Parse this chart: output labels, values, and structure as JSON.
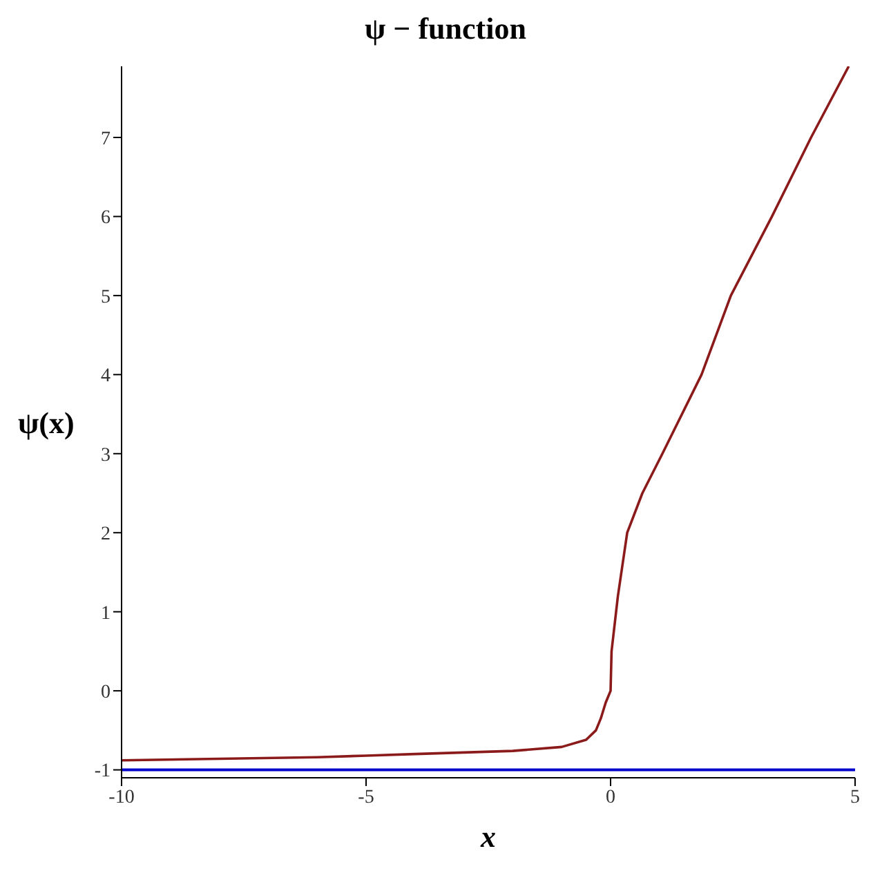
{
  "chart_data": {
    "type": "line",
    "title": "ψ − function",
    "xlabel": "x",
    "ylabel": "ψ(x)",
    "x": [
      -10,
      -8,
      -6,
      -5,
      -4,
      -3,
      -2,
      -1,
      -0.5,
      -0.3,
      -0.2,
      -0.1,
      0,
      0.02,
      0.15,
      0.34,
      0.65,
      1.06,
      1.86,
      2.46,
      3.3,
      4.1,
      4.87
    ],
    "series": [
      {
        "color": "#8b1a1a",
        "values": [
          -0.88,
          -0.86,
          -0.84,
          -0.82,
          -0.8,
          -0.78,
          -0.76,
          -0.71,
          -0.62,
          -0.5,
          -0.35,
          -0.15,
          0,
          0.5,
          1.2,
          2,
          2.5,
          3,
          4,
          5,
          6,
          7,
          7.9
        ]
      }
    ],
    "ref_lines": [
      {
        "axis": "y",
        "value": -1,
        "color": "#0000cc"
      }
    ],
    "xlim": [
      -10,
      5
    ],
    "xticks": [
      -10,
      -5,
      0,
      5
    ],
    "ylim": [
      -1.1,
      7.9
    ],
    "yticks": [
      -1,
      0,
      1,
      2,
      3,
      4,
      5,
      6,
      7
    ],
    "grid": false,
    "legend": false,
    "marker": "none",
    "line_style": "solid"
  }
}
